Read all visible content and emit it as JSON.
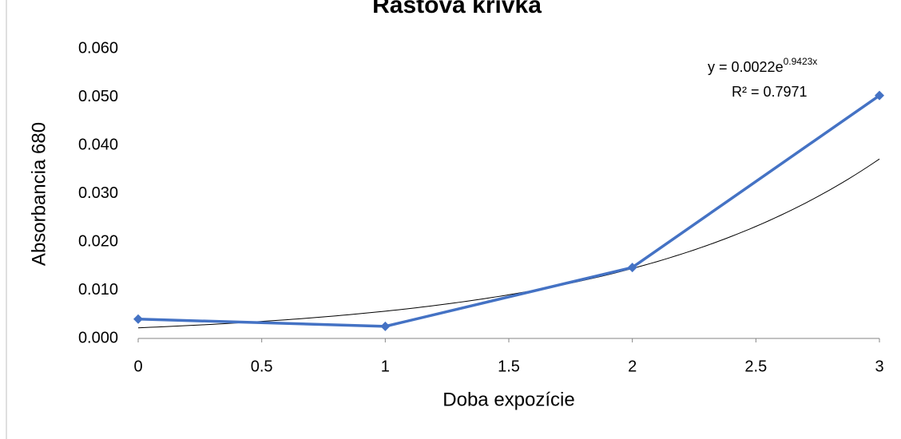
{
  "chart_data": {
    "type": "line",
    "title": "Rastová krivka",
    "x_label": "Doba expozície",
    "y_label": "Absorbancia 680",
    "x": [
      0,
      1,
      2,
      3
    ],
    "series": [
      {
        "name": "Absorbancia 680",
        "color": "#4472c4",
        "values": [
          0.004,
          0.0025,
          0.0147,
          0.0503
        ]
      }
    ],
    "xlim": [
      0,
      3
    ],
    "xticks": [
      0,
      0.5,
      1,
      1.5,
      2,
      2.5,
      3
    ],
    "ylim": [
      0,
      0.06
    ],
    "yticks": [
      {
        "value": 0,
        "label": "0.000"
      },
      {
        "value": 0.01,
        "label": "0.010"
      },
      {
        "value": 0.02,
        "label": "0.020"
      },
      {
        "value": 0.03,
        "label": "0.030"
      },
      {
        "value": 0.04,
        "label": "0.040"
      },
      {
        "value": 0.05,
        "label": "0.050"
      },
      {
        "value": 0.06,
        "label": "0.060"
      }
    ],
    "grid": false,
    "trendline": {
      "type": "exponential",
      "a": 0.0022,
      "b": 0.9423,
      "color": "#000000",
      "equation": "y = 0.0022e",
      "exponent_label": "0.9423x",
      "r2_label": "R² = 0.7971"
    }
  }
}
